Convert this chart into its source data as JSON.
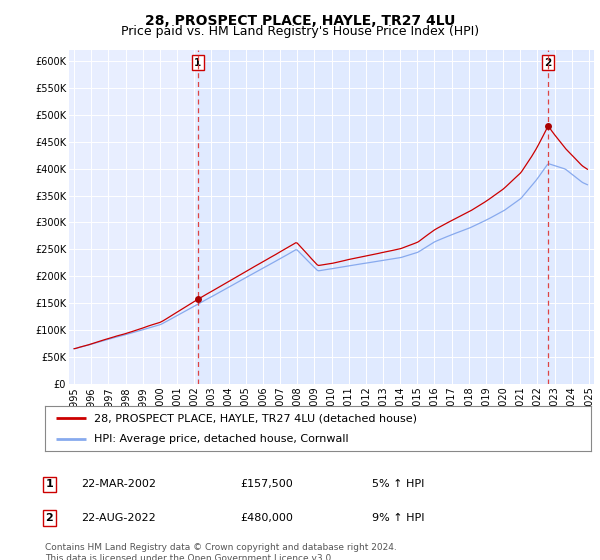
{
  "title": "28, PROSPECT PLACE, HAYLE, TR27 4LU",
  "subtitle": "Price paid vs. HM Land Registry's House Price Index (HPI)",
  "ylabel_ticks": [
    "£0",
    "£50K",
    "£100K",
    "£150K",
    "£200K",
    "£250K",
    "£300K",
    "£350K",
    "£400K",
    "£450K",
    "£500K",
    "£550K",
    "£600K"
  ],
  "ytick_vals": [
    0,
    50000,
    100000,
    150000,
    200000,
    250000,
    300000,
    350000,
    400000,
    450000,
    500000,
    550000,
    600000
  ],
  "ylim": [
    0,
    620000
  ],
  "xlim_left": 1994.7,
  "xlim_right": 2025.3,
  "background_color": "#ffffff",
  "plot_bg_color": "#e8eeff",
  "grid_color": "#ffffff",
  "vline_shade_color": "#dce8ff",
  "line1_color": "#cc0000",
  "line2_color": "#88aaee",
  "vline_color": "#dd4444",
  "marker_color": "#aa0000",
  "legend_line1": "28, PROSPECT PLACE, HAYLE, TR27 4LU (detached house)",
  "legend_line2": "HPI: Average price, detached house, Cornwall",
  "annotation1_label": "1",
  "annotation1_date": "22-MAR-2002",
  "annotation1_price": "£157,500",
  "annotation1_hpi": "5% ↑ HPI",
  "annotation2_label": "2",
  "annotation2_date": "22-AUG-2022",
  "annotation2_price": "£480,000",
  "annotation2_hpi": "9% ↑ HPI",
  "footer": "Contains HM Land Registry data © Crown copyright and database right 2024.\nThis data is licensed under the Open Government Licence v3.0.",
  "title_fontsize": 10,
  "subtitle_fontsize": 9,
  "axis_fontsize": 7,
  "legend_fontsize": 8,
  "annotation_fontsize": 8,
  "footer_fontsize": 6.5
}
